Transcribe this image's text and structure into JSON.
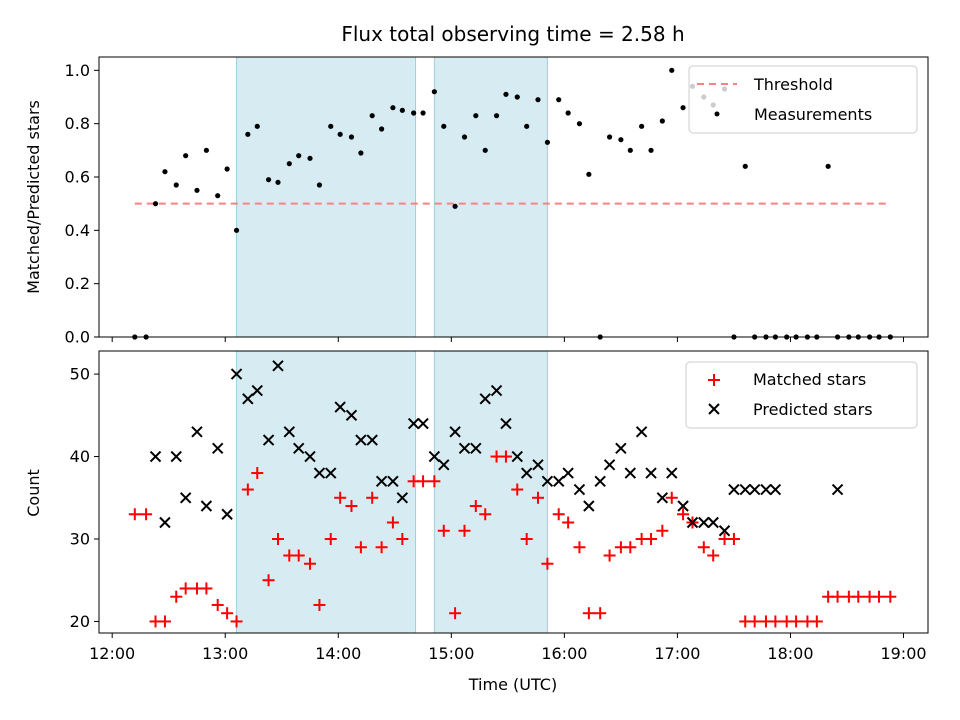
{
  "figure": {
    "title": "Flux total observing time = 2.58 h"
  },
  "chart_data": [
    {
      "type": "scatter",
      "panel": "top",
      "title": "Flux total observing time = 2.58 h",
      "xlabel": "",
      "ylabel": "Matched/Predicted stars",
      "xlim": [
        "11:53",
        "19:13"
      ],
      "ylim": [
        0,
        1.05
      ],
      "yticks": [
        0.0,
        0.2,
        0.4,
        0.6,
        0.8,
        1.0
      ],
      "ytick_labels": [
        "0.0",
        "0.2",
        "0.4",
        "0.6",
        "0.8",
        "1.0"
      ],
      "legend_position": "top-right",
      "shaded_intervals": [
        [
          "13:06",
          "14:41"
        ],
        [
          "14:51",
          "15:51"
        ]
      ],
      "shade_color": "#add8e6",
      "series": [
        {
          "name": "Threshold",
          "kind": "dashed-line",
          "color": "#ff8080",
          "x": [
            "12:12",
            "18:53"
          ],
          "y": [
            0.5,
            0.5
          ]
        },
        {
          "name": "Measurements",
          "kind": "points",
          "color": "#000000",
          "x": [
            "12:12",
            "12:18",
            "12:23",
            "12:28",
            "12:34",
            "12:39",
            "12:45",
            "12:50",
            "12:56",
            "13:01",
            "13:06",
            "13:12",
            "13:17",
            "13:23",
            "13:28",
            "13:34",
            "13:39",
            "13:45",
            "13:50",
            "13:56",
            "14:01",
            "14:07",
            "14:12",
            "14:18",
            "14:23",
            "14:29",
            "14:34",
            "14:40",
            "14:45",
            "14:51",
            "14:56",
            "15:02",
            "15:07",
            "15:13",
            "15:18",
            "15:24",
            "15:29",
            "15:35",
            "15:40",
            "15:46",
            "15:51",
            "15:57",
            "16:02",
            "16:08",
            "16:13",
            "16:19",
            "16:24",
            "16:30",
            "16:35",
            "16:41",
            "16:46",
            "16:52",
            "16:57",
            "17:03",
            "17:08",
            "17:14",
            "17:19",
            "17:25",
            "17:30",
            "17:36",
            "17:41",
            "17:47",
            "17:52",
            "17:58",
            "18:03",
            "18:09",
            "18:14",
            "18:20",
            "18:25",
            "18:31",
            "18:36",
            "18:42",
            "18:47",
            "18:53"
          ],
          "y": [
            0.0,
            0.0,
            0.5,
            0.62,
            0.57,
            0.68,
            0.55,
            0.7,
            0.53,
            0.63,
            0.4,
            0.76,
            0.79,
            0.59,
            0.58,
            0.65,
            0.68,
            0.67,
            0.57,
            0.79,
            0.76,
            0.75,
            0.69,
            0.83,
            0.78,
            0.86,
            0.85,
            0.84,
            0.84,
            0.92,
            0.79,
            0.49,
            0.75,
            0.83,
            0.7,
            0.83,
            0.91,
            0.9,
            0.79,
            0.89,
            0.73,
            0.89,
            0.84,
            0.8,
            0.61,
            0.0,
            0.75,
            0.74,
            0.7,
            0.79,
            0.7,
            0.81,
            1.0,
            0.86,
            0.94,
            0.9,
            0.87,
            0.93,
            0.0,
            0.64,
            0.0,
            0.0,
            0.0,
            0.0,
            0.0,
            0.0,
            0.0,
            0.64,
            0.0,
            0.0,
            0.0,
            0.0,
            0.0,
            0.0
          ]
        }
      ]
    },
    {
      "type": "scatter",
      "panel": "bottom",
      "xlabel": "Time (UTC)",
      "ylabel": "Count",
      "xlim": [
        "11:53",
        "19:13"
      ],
      "ylim": [
        18.6,
        52.8
      ],
      "xticks": [
        "12:00",
        "13:00",
        "14:00",
        "15:00",
        "16:00",
        "17:00",
        "18:00",
        "19:00"
      ],
      "yticks": [
        20,
        30,
        40,
        50
      ],
      "ytick_labels": [
        "20",
        "30",
        "40",
        "50"
      ],
      "legend_position": "top-right",
      "shaded_intervals": [
        [
          "13:06",
          "14:41"
        ],
        [
          "14:51",
          "15:51"
        ]
      ],
      "shade_color": "#add8e6",
      "series": [
        {
          "name": "Matched stars",
          "marker": "+",
          "color": "#ff0000",
          "x": [
            "12:12",
            "12:18",
            "12:23",
            "12:28",
            "12:34",
            "12:39",
            "12:45",
            "12:50",
            "12:56",
            "13:01",
            "13:06",
            "13:12",
            "13:17",
            "13:23",
            "13:28",
            "13:34",
            "13:39",
            "13:45",
            "13:50",
            "13:56",
            "14:01",
            "14:07",
            "14:12",
            "14:18",
            "14:23",
            "14:29",
            "14:34",
            "14:40",
            "14:45",
            "14:51",
            "14:56",
            "15:02",
            "15:07",
            "15:13",
            "15:18",
            "15:24",
            "15:29",
            "15:35",
            "15:40",
            "15:46",
            "15:51",
            "15:57",
            "16:02",
            "16:08",
            "16:13",
            "16:19",
            "16:24",
            "16:30",
            "16:35",
            "16:41",
            "16:46",
            "16:52",
            "16:57",
            "17:03",
            "17:08",
            "17:14",
            "17:19",
            "17:25",
            "17:30",
            "17:36",
            "17:41",
            "17:47",
            "17:52",
            "17:58",
            "18:03",
            "18:09",
            "18:14",
            "18:20",
            "18:25",
            "18:31",
            "18:36",
            "18:42",
            "18:47",
            "18:53"
          ],
          "y": [
            33,
            33,
            20,
            20,
            23,
            24,
            24,
            24,
            22,
            21,
            20,
            36,
            38,
            25,
            30,
            28,
            28,
            27,
            22,
            30,
            35,
            34,
            29,
            35,
            29,
            32,
            30,
            37,
            37,
            37,
            31,
            21,
            31,
            34,
            33,
            40,
            40,
            36,
            30,
            35,
            27,
            33,
            32,
            29,
            21,
            21,
            28,
            29,
            29,
            30,
            30,
            31,
            35,
            33,
            32,
            29,
            28,
            30,
            30,
            20,
            20,
            20,
            20,
            20,
            20,
            20,
            20,
            23,
            23,
            23,
            23,
            23,
            23,
            23
          ]
        },
        {
          "name": "Predicted stars",
          "marker": "x",
          "color": "#000000",
          "x": [
            "12:23",
            "12:28",
            "12:34",
            "12:39",
            "12:45",
            "12:50",
            "12:56",
            "13:01",
            "13:06",
            "13:12",
            "13:17",
            "13:23",
            "13:28",
            "13:34",
            "13:39",
            "13:45",
            "13:50",
            "13:56",
            "14:01",
            "14:07",
            "14:12",
            "14:18",
            "14:23",
            "14:29",
            "14:34",
            "14:40",
            "14:45",
            "14:51",
            "14:56",
            "15:02",
            "15:07",
            "15:13",
            "15:18",
            "15:24",
            "15:29",
            "15:35",
            "15:40",
            "15:46",
            "15:51",
            "15:57",
            "16:02",
            "16:08",
            "16:13",
            "16:19",
            "16:24",
            "16:30",
            "16:35",
            "16:41",
            "16:46",
            "16:52",
            "16:57",
            "17:03",
            "17:08",
            "17:14",
            "17:19",
            "17:25",
            "17:30",
            "17:36",
            "17:41",
            "17:47",
            "17:52",
            "18:25"
          ],
          "y": [
            40,
            32,
            40,
            35,
            43,
            34,
            41,
            33,
            50,
            47,
            48,
            42,
            51,
            43,
            41,
            40,
            38,
            38,
            46,
            45,
            42,
            42,
            37,
            37,
            35,
            44,
            44,
            40,
            39,
            43,
            41,
            41,
            47,
            48,
            44,
            40,
            38,
            39,
            37,
            37,
            38,
            36,
            34,
            37,
            39,
            41,
            38,
            43,
            38,
            35,
            38,
            34,
            32,
            32,
            32,
            31,
            36,
            36,
            36,
            36,
            36,
            36
          ]
        }
      ]
    }
  ]
}
